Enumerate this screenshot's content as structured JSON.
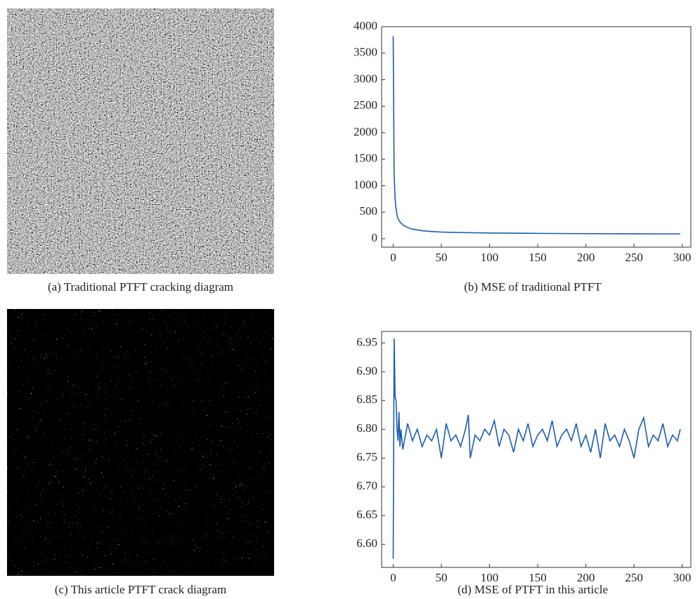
{
  "images": [
    {
      "caption": "(a) Traditional PTFT cracking diagram"
    },
    {
      "caption": "(c) This article PTFT crack diagram"
    }
  ],
  "chart_data": [
    {
      "type": "line",
      "caption": "(b) MSE of traditional PTFT",
      "x": [
        0,
        1,
        2,
        3,
        4,
        5,
        7,
        10,
        15,
        20,
        30,
        40,
        50,
        75,
        100,
        150,
        200,
        250,
        298
      ],
      "series": [
        {
          "color": "#1a5cb0",
          "values": [
            3820,
            1200,
            750,
            560,
            450,
            380,
            320,
            260,
            210,
            180,
            150,
            135,
            125,
            115,
            108,
            100,
            95,
            92,
            90
          ]
        }
      ],
      "xlim": [
        -12,
        309
      ],
      "xticks": [
        0,
        50,
        100,
        150,
        200,
        250,
        300
      ],
      "ylim": [
        -160,
        4000
      ],
      "yticks": [
        0,
        500,
        1000,
        1500,
        2000,
        2500,
        3000,
        3500,
        4000
      ]
    },
    {
      "type": "line",
      "caption": "(d) MSE of PTFT in this article",
      "x": [
        0,
        1,
        2,
        3,
        4,
        5,
        6,
        7,
        8,
        10,
        15,
        20,
        25,
        30,
        35,
        40,
        45,
        50,
        55,
        60,
        65,
        70,
        75,
        78,
        80,
        85,
        90,
        95,
        100,
        105,
        110,
        115,
        120,
        125,
        130,
        135,
        140,
        145,
        150,
        155,
        160,
        165,
        170,
        175,
        180,
        185,
        190,
        195,
        200,
        205,
        210,
        215,
        220,
        225,
        230,
        235,
        240,
        245,
        250,
        255,
        260,
        265,
        270,
        275,
        280,
        285,
        290,
        295,
        298
      ],
      "series": [
        {
          "color": "#1a5cb0",
          "values": [
            6.575,
            6.958,
            6.855,
            6.85,
            6.8,
            6.78,
            6.83,
            6.77,
            6.8,
            6.765,
            6.81,
            6.78,
            6.8,
            6.77,
            6.79,
            6.78,
            6.8,
            6.75,
            6.81,
            6.78,
            6.79,
            6.77,
            6.8,
            6.825,
            6.75,
            6.79,
            6.78,
            6.8,
            6.79,
            6.815,
            6.77,
            6.8,
            6.79,
            6.76,
            6.8,
            6.78,
            6.81,
            6.77,
            6.79,
            6.8,
            6.78,
            6.815,
            6.77,
            6.79,
            6.8,
            6.78,
            6.81,
            6.77,
            6.79,
            6.76,
            6.8,
            6.75,
            6.81,
            6.78,
            6.79,
            6.77,
            6.8,
            6.78,
            6.75,
            6.8,
            6.82,
            6.77,
            6.79,
            6.78,
            6.81,
            6.77,
            6.79,
            6.78,
            6.8
          ]
        }
      ],
      "xlim": [
        -12,
        309
      ],
      "xticks": [
        0,
        50,
        100,
        150,
        200,
        250,
        300
      ],
      "ylim": [
        6.56,
        6.97
      ],
      "yticks": [
        {
          "value": 6.6,
          "label": "6.60"
        },
        6.65,
        {
          "value": 6.7,
          "label": "6.70"
        },
        6.75,
        {
          "value": 6.8,
          "label": "6.80"
        },
        6.85,
        {
          "value": 6.9,
          "label": "6.90"
        },
        6.95
      ]
    }
  ]
}
